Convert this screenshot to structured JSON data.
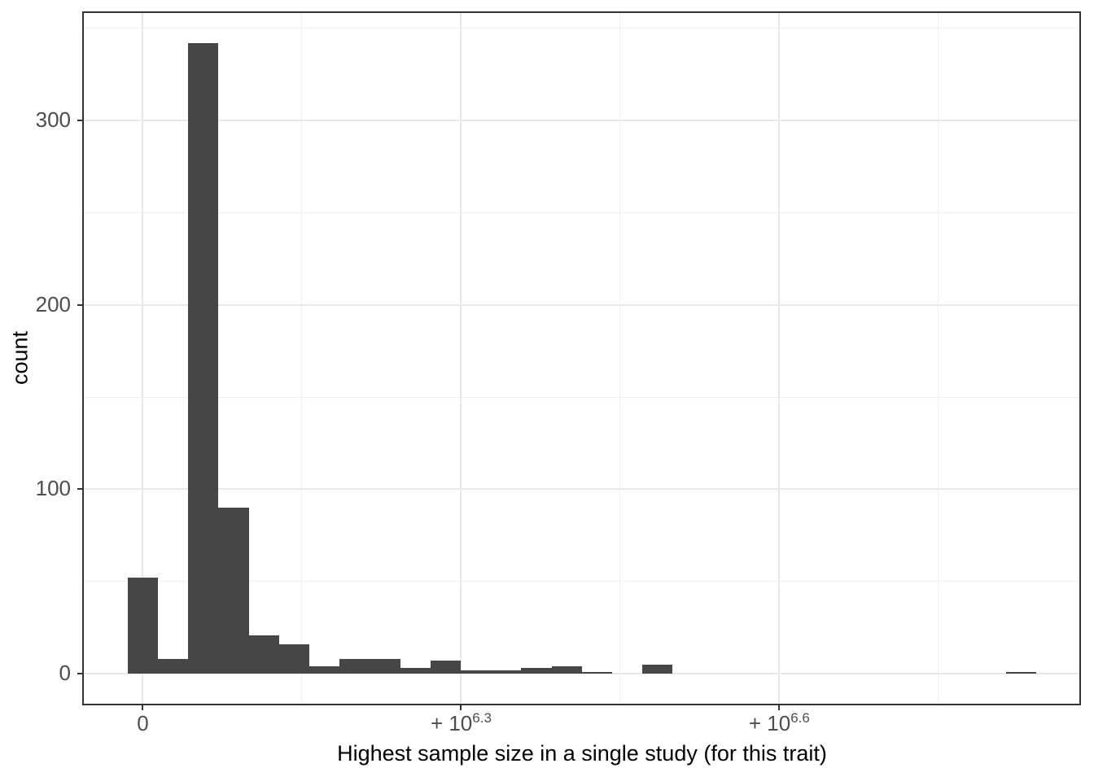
{
  "chart_data": {
    "type": "bar",
    "subtype": "histogram",
    "title": "",
    "xlabel": "Highest sample size in a single study (for this trait)",
    "ylabel": "count",
    "legend": "none",
    "grid": true,
    "x_scale_note": "pseudo-log x axis: u=0 at tick '0', u=1 at '+10^6.3', u=2 at '+10^6.6'",
    "bins": {
      "first_center_u": 0,
      "width_u": 0.09514,
      "counts": [
        52,
        8,
        342,
        90,
        21,
        16,
        4,
        8,
        8,
        3,
        7,
        2,
        2,
        3,
        4,
        1,
        0,
        5,
        0,
        0,
        0,
        0,
        0,
        0,
        0,
        0,
        0,
        0,
        0,
        1
      ]
    },
    "x_axis": {
      "range_u": [
        -0.1905,
        2.948
      ],
      "minor_u": [
        0.5,
        1.5,
        2.5
      ],
      "ticks": [
        {
          "u": 0,
          "label": "0",
          "base": "0",
          "sup": ""
        },
        {
          "u": 1,
          "label": "+10^6.3",
          "base": "+ 10",
          "sup": "6.3"
        },
        {
          "u": 2,
          "label": "+10^6.6",
          "base": "+ 10",
          "sup": "6.6"
        }
      ]
    },
    "y_axis": {
      "range": [
        -17.1,
        359.1
      ],
      "ticks": [
        {
          "v": 0,
          "label": "0"
        },
        {
          "v": 100,
          "label": "100"
        },
        {
          "v": 200,
          "label": "200"
        },
        {
          "v": 300,
          "label": "300"
        }
      ],
      "minor": [
        50,
        150,
        250,
        350
      ]
    },
    "colors": {
      "bar_fill": "#464646",
      "grid_major": "#e8e8e8",
      "grid_minor": "#efefef",
      "panel_border": "#333333",
      "tick_text": "#4d4d4d",
      "title_text": "#000000",
      "background": "#ffffff"
    }
  }
}
